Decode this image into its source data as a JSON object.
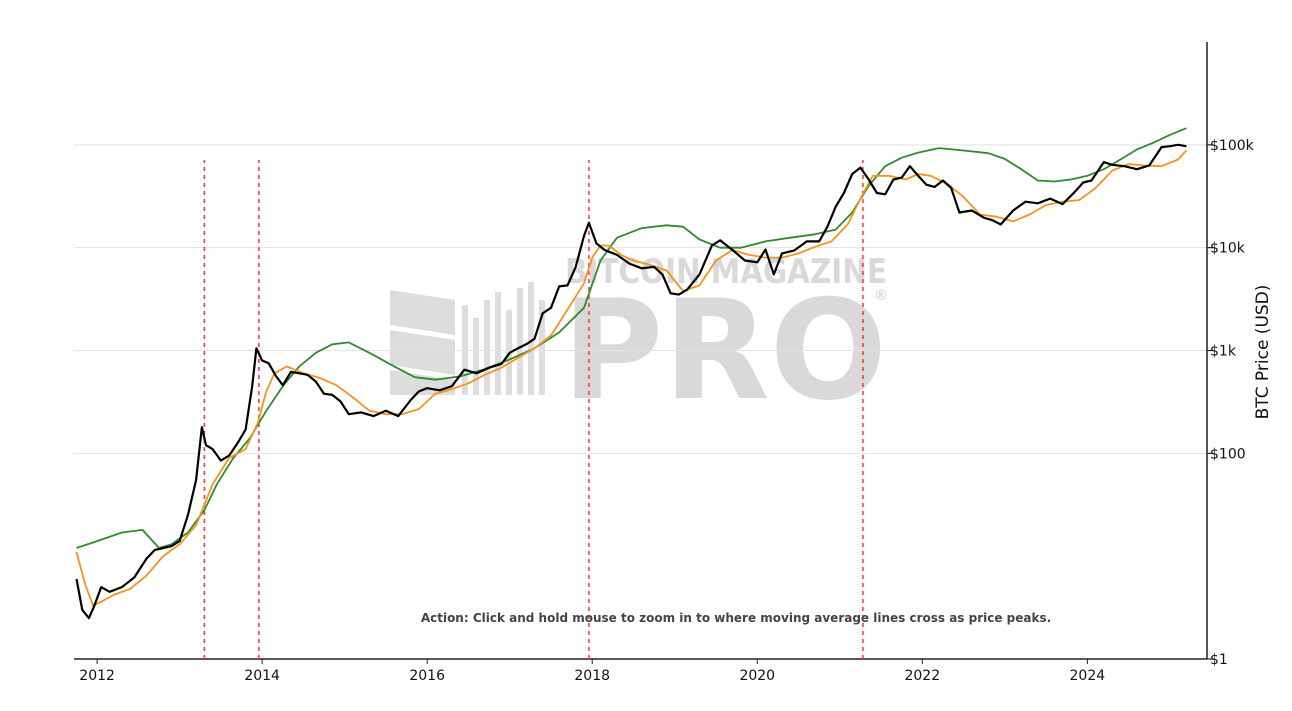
{
  "chart_data": {
    "type": "line",
    "title": "",
    "ylabel": "BTC Price (USD)",
    "y_scale": "log",
    "ylim": [
      1,
      1000000
    ],
    "xlim": [
      "2011-09",
      "2025-07"
    ],
    "x_ticks": [
      {
        "label": "2012",
        "year": 2012.0
      },
      {
        "label": "2014",
        "year": 2014.0
      },
      {
        "label": "2016",
        "year": 2016.0
      },
      {
        "label": "2018",
        "year": 2018.0
      },
      {
        "label": "2020",
        "year": 2020.0
      },
      {
        "label": "2022",
        "year": 2022.0
      },
      {
        "label": "2024",
        "year": 2024.0
      }
    ],
    "y_ticks": [
      {
        "label": "$1",
        "value": 1
      },
      {
        "label": "$100",
        "value": 100
      },
      {
        "label": "$1k",
        "value": 1000
      },
      {
        "label": "$10k",
        "value": 10000
      },
      {
        "label": "$100k",
        "value": 100000
      }
    ],
    "grid": "horizontal",
    "colors": {
      "price": "#000000",
      "short_ma": "#f7931a",
      "long_ma": "#2e8b2e",
      "cross": "#ff3b3b"
    },
    "series": [
      {
        "key": "price",
        "x": [
          2011.75,
          2011.82,
          2011.9,
          2011.96,
          2012.05,
          2012.15,
          2012.3,
          2012.45,
          2012.6,
          2012.7,
          2012.8,
          2012.9,
          2013.0,
          2013.1,
          2013.2,
          2013.27,
          2013.32,
          2013.4,
          2013.5,
          2013.6,
          2013.7,
          2013.8,
          2013.88,
          2013.93,
          2014.0,
          2014.08,
          2014.17,
          2014.25,
          2014.35,
          2014.45,
          2014.55,
          2014.65,
          2014.75,
          2014.85,
          2014.95,
          2015.05,
          2015.2,
          2015.35,
          2015.5,
          2015.65,
          2015.8,
          2015.9,
          2016.0,
          2016.15,
          2016.3,
          2016.45,
          2016.6,
          2016.75,
          2016.9,
          2017.0,
          2017.1,
          2017.2,
          2017.3,
          2017.4,
          2017.5,
          2017.6,
          2017.7,
          2017.8,
          2017.9,
          2017.96,
          2018.05,
          2018.15,
          2018.3,
          2018.45,
          2018.6,
          2018.75,
          2018.85,
          2018.95,
          2019.05,
          2019.15,
          2019.3,
          2019.45,
          2019.55,
          2019.7,
          2019.85,
          2020.0,
          2020.1,
          2020.2,
          2020.3,
          2020.45,
          2020.6,
          2020.75,
          2020.85,
          2020.95,
          2021.05,
          2021.15,
          2021.25,
          2021.35,
          2021.45,
          2021.55,
          2021.65,
          2021.75,
          2021.85,
          2021.95,
          2022.05,
          2022.15,
          2022.25,
          2022.35,
          2022.45,
          2022.6,
          2022.75,
          2022.85,
          2022.95,
          2023.1,
          2023.25,
          2023.4,
          2023.55,
          2023.7,
          2023.85,
          2023.95,
          2024.05,
          2024.2,
          2024.3,
          2024.45,
          2024.6,
          2024.75,
          2024.9,
          2025.0,
          2025.1,
          2025.2
        ],
        "y": [
          6.0,
          3.0,
          2.5,
          3.2,
          5.0,
          4.5,
          5.0,
          6.2,
          9.5,
          11.5,
          12.0,
          12.5,
          14.0,
          25.0,
          55.0,
          180.0,
          120.0,
          110.0,
          85.0,
          95.0,
          125.0,
          170.0,
          450.0,
          1050.0,
          800.0,
          750.0,
          560.0,
          460.0,
          620.0,
          600.0,
          580.0,
          500.0,
          380.0,
          370.0,
          320.0,
          240.0,
          250.0,
          230.0,
          260.0,
          230.0,
          330.0,
          400.0,
          430.0,
          410.0,
          450.0,
          650.0,
          600.0,
          680.0,
          740.0,
          950.0,
          1050.0,
          1150.0,
          1300.0,
          2300.0,
          2600.0,
          4200.0,
          4300.0,
          6500.0,
          13000.0,
          17500.0,
          11000.0,
          9500.0,
          8500.0,
          7000.0,
          6300.0,
          6500.0,
          5500.0,
          3600.0,
          3500.0,
          3900.0,
          5500.0,
          10500.0,
          11800.0,
          9500.0,
          7500.0,
          7200.0,
          9600.0,
          5500.0,
          8800.0,
          9400.0,
          11500.0,
          11500.0,
          16000.0,
          25000.0,
          34000.0,
          52000.0,
          60000.0,
          46000.0,
          34000.0,
          33000.0,
          46000.0,
          48000.0,
          62000.0,
          50000.0,
          41000.0,
          39000.0,
          45000.0,
          38000.0,
          22000.0,
          23000.0,
          19500.0,
          18500.0,
          16800.0,
          23000.0,
          28000.0,
          27000.0,
          30000.0,
          26500.0,
          35000.0,
          43000.0,
          45000.0,
          68000.0,
          64000.0,
          62000.0,
          58000.0,
          63000.0,
          95000.0,
          97000.0,
          100000.0,
          97000.0
        ]
      },
      {
        "key": "short_ma",
        "x": [
          2011.75,
          2011.85,
          2011.95,
          2012.05,
          2012.2,
          2012.4,
          2012.6,
          2012.8,
          2013.0,
          2013.2,
          2013.4,
          2013.6,
          2013.8,
          2013.95,
          2014.05,
          2014.15,
          2014.3,
          2014.5,
          2014.7,
          2014.9,
          2015.1,
          2015.3,
          2015.5,
          2015.7,
          2015.9,
          2016.1,
          2016.3,
          2016.5,
          2016.7,
          2016.9,
          2017.1,
          2017.3,
          2017.5,
          2017.7,
          2017.9,
          2018.0,
          2018.1,
          2018.2,
          2018.35,
          2018.5,
          2018.7,
          2018.9,
          2019.1,
          2019.3,
          2019.5,
          2019.7,
          2019.9,
          2020.1,
          2020.3,
          2020.5,
          2020.7,
          2020.9,
          2021.1,
          2021.25,
          2021.4,
          2021.6,
          2021.8,
          2021.95,
          2022.1,
          2022.3,
          2022.5,
          2022.7,
          2022.9,
          2023.1,
          2023.3,
          2023.5,
          2023.7,
          2023.9,
          2024.1,
          2024.3,
          2024.5,
          2024.7,
          2024.9,
          2025.1,
          2025.2
        ],
        "y": [
          11.0,
          5.5,
          3.3,
          3.6,
          4.2,
          4.8,
          6.5,
          10.0,
          13.0,
          20.0,
          50.0,
          90.0,
          110.0,
          200.0,
          400.0,
          600.0,
          700.0,
          600.0,
          540.0,
          460.0,
          350.0,
          260.0,
          240.0,
          240.0,
          270.0,
          380.0,
          420.0,
          480.0,
          580.0,
          680.0,
          850.0,
          1050.0,
          1400.0,
          2500.0,
          4500.0,
          8000.0,
          10500.0,
          10500.0,
          8500.0,
          7500.0,
          6800.0,
          6000.0,
          3800.0,
          4300.0,
          7500.0,
          9500.0,
          8500.0,
          8000.0,
          8000.0,
          8800.0,
          10200.0,
          11500.0,
          17000.0,
          30000.0,
          50000.0,
          50000.0,
          46000.0,
          52000.0,
          50000.0,
          42000.0,
          31000.0,
          21000.0,
          20000.0,
          18000.0,
          21000.0,
          26000.0,
          28000.0,
          29000.0,
          38000.0,
          56000.0,
          65000.0,
          63000.0,
          62000.0,
          72000.0,
          88000.0
        ]
      },
      {
        "key": "long_ma",
        "x": [
          2011.75,
          2012.0,
          2012.3,
          2012.55,
          2012.75,
          2012.9,
          2013.1,
          2013.3,
          2013.45,
          2013.65,
          2013.85,
          2014.05,
          2014.25,
          2014.45,
          2014.65,
          2014.85,
          2015.05,
          2015.3,
          2015.6,
          2015.85,
          2016.1,
          2016.4,
          2016.7,
          2017.0,
          2017.3,
          2017.6,
          2017.9,
          2018.1,
          2018.3,
          2018.6,
          2018.9,
          2019.1,
          2019.3,
          2019.55,
          2019.8,
          2020.1,
          2020.4,
          2020.7,
          2020.95,
          2021.15,
          2021.35,
          2021.55,
          2021.75,
          2021.95,
          2022.2,
          2022.5,
          2022.8,
          2023.0,
          2023.2,
          2023.4,
          2023.6,
          2023.8,
          2024.0,
          2024.2,
          2024.4,
          2024.6,
          2024.8,
          2025.0,
          2025.2
        ],
        "y": [
          12.0,
          14.0,
          17.0,
          18.0,
          12.0,
          13.0,
          17.0,
          28.0,
          50.0,
          90.0,
          140.0,
          260.0,
          450.0,
          700.0,
          950.0,
          1150.0,
          1200.0,
          950.0,
          700.0,
          550.0,
          520.0,
          560.0,
          660.0,
          820.0,
          1050.0,
          1500.0,
          2600.0,
          7500.0,
          12500.0,
          15500.0,
          16500.0,
          16000.0,
          12000.0,
          10000.0,
          10000.0,
          11500.0,
          12500.0,
          13500.0,
          15000.0,
          22000.0,
          40000.0,
          62000.0,
          75000.0,
          84000.0,
          93000.0,
          88000.0,
          83000.0,
          73000.0,
          58000.0,
          45000.0,
          44000.0,
          46000.0,
          50000.0,
          58000.0,
          72000.0,
          90000.0,
          105000.0,
          125000.0,
          145000.0
        ]
      }
    ],
    "crossovers": [
      2013.3,
      2013.96,
      2017.96,
      2021.28
    ],
    "annotation": "Action: Click and hold mouse to zoom in to where moving average lines cross as price peaks.",
    "watermark": {
      "line1": "BITCOIN MAGAZINE",
      "line2": "PRO",
      "reg": "®"
    }
  }
}
